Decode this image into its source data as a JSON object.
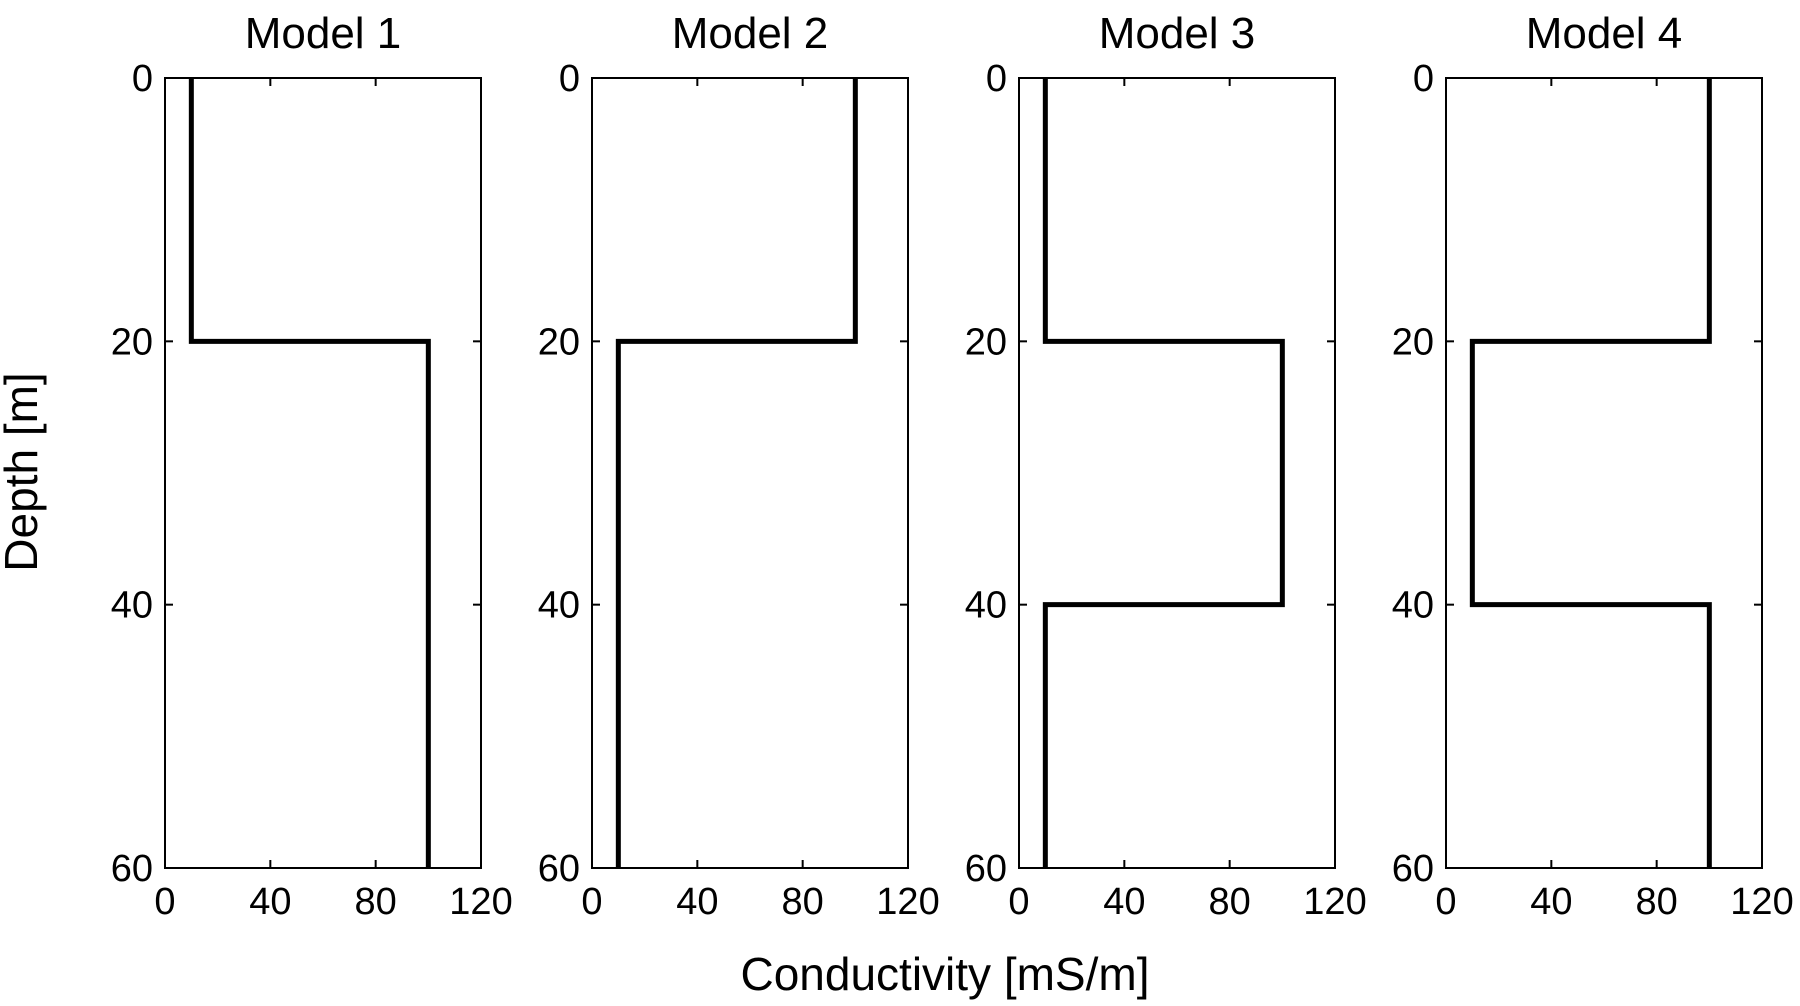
{
  "chart_data": {
    "type": "line",
    "xlabel": "Conductivity [mS/m]",
    "ylabel": "Depth [m]",
    "xlim": [
      0,
      120
    ],
    "ylim": [
      0,
      60
    ],
    "y_inverted": true,
    "grid": false,
    "xticks": [
      0,
      40,
      80,
      120
    ],
    "yticks": [
      0,
      20,
      40,
      60
    ],
    "panels": [
      {
        "title": "Model 1",
        "series": [
          {
            "conductivity": [
              10,
              10,
              100,
              100
            ],
            "depth": [
              0,
              20,
              20,
              60
            ]
          }
        ]
      },
      {
        "title": "Model 2",
        "series": [
          {
            "conductivity": [
              100,
              100,
              10,
              10
            ],
            "depth": [
              0,
              20,
              20,
              60
            ]
          }
        ]
      },
      {
        "title": "Model 3",
        "series": [
          {
            "conductivity": [
              10,
              10,
              100,
              100,
              10,
              10
            ],
            "depth": [
              0,
              20,
              20,
              40,
              40,
              60
            ]
          }
        ]
      },
      {
        "title": "Model 4",
        "series": [
          {
            "conductivity": [
              100,
              100,
              10,
              10,
              100,
              100
            ],
            "depth": [
              0,
              20,
              20,
              40,
              40,
              60
            ]
          }
        ]
      }
    ]
  }
}
